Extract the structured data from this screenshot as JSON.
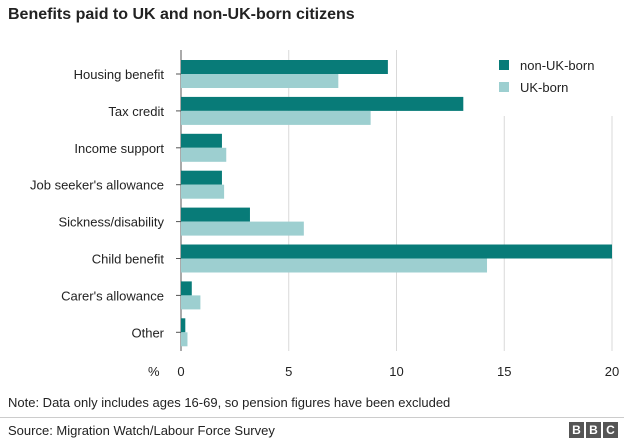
{
  "title": "Benefits paid to UK and non-UK-born citizens",
  "note": "Note: Data only includes ages 16-69, so pension figures have been excluded",
  "source": "Source: Migration Watch/Labour Force Survey",
  "logo": [
    "B",
    "B",
    "C"
  ],
  "colors": {
    "non_uk": "#087b78",
    "uk": "#9dcfd0",
    "grid": "#d9d9d9",
    "axis": "#555555"
  },
  "chart_data": {
    "type": "bar",
    "orientation": "horizontal",
    "title": "Benefits paid to UK and non-UK-born citizens",
    "xlabel": "%",
    "xlim": [
      0,
      20
    ],
    "xticks": [
      0,
      5,
      10,
      15,
      20
    ],
    "grid": true,
    "legend_position": "top-right",
    "categories": [
      "Housing benefit",
      "Tax credit",
      "Income support",
      "Job seeker's allowance",
      "Sickness/disability",
      "Child benefit",
      "Carer's allowance",
      "Other"
    ],
    "series": [
      {
        "name": "non-UK-born",
        "color": "#087b78",
        "values": [
          9.6,
          13.1,
          1.9,
          1.9,
          3.2,
          20.0,
          0.5,
          0.2
        ]
      },
      {
        "name": "UK-born",
        "color": "#9dcfd0",
        "values": [
          7.3,
          8.8,
          2.1,
          2.0,
          5.7,
          14.2,
          0.9,
          0.3
        ]
      }
    ]
  }
}
